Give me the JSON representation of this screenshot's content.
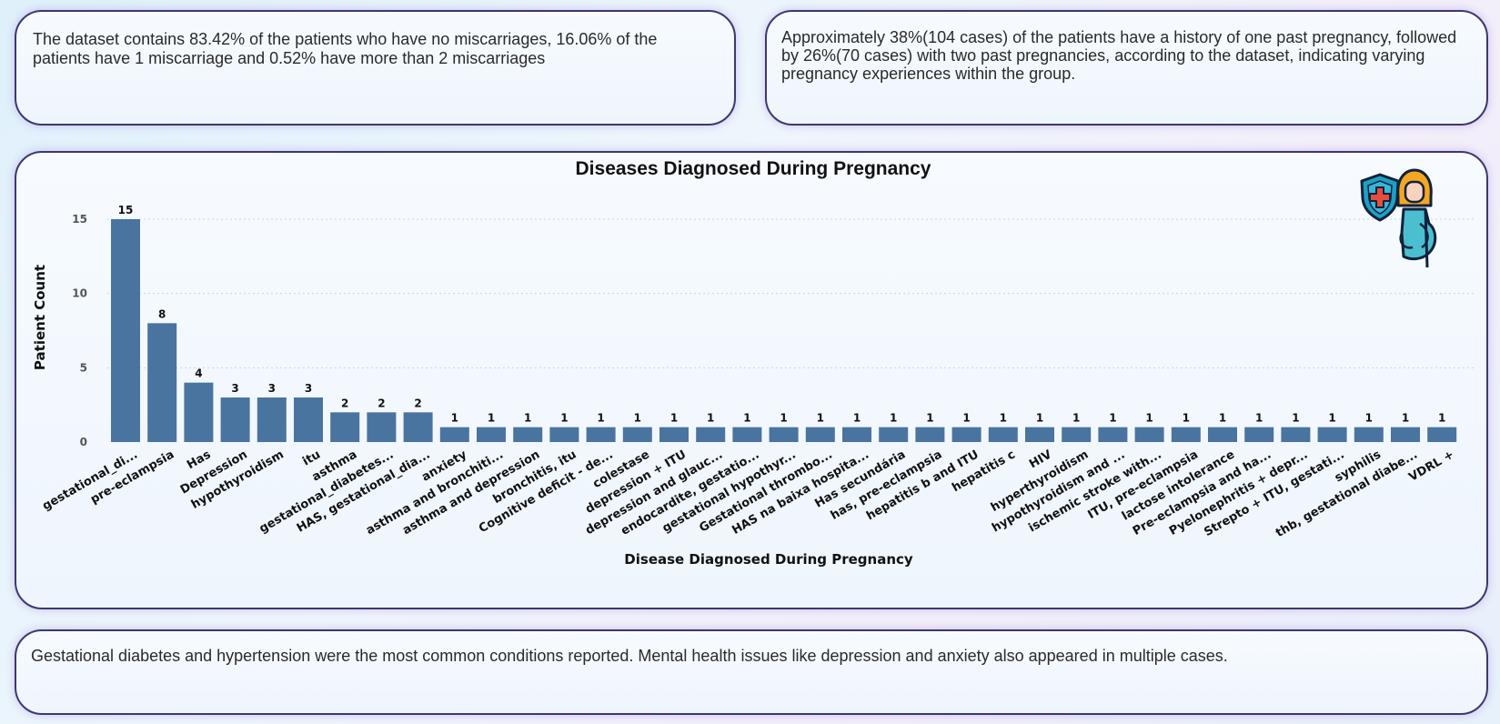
{
  "cards": {
    "miscarriage": "The dataset contains 83.42% of the patients who have no miscarriages, 16.06% of the patients have 1 miscarriage and 0.52% have more than 2 miscarriages",
    "pregnancies": "Approximately 38%(104 cases)  of the patients have a history of one past pregnancy, followed by 26%(70 cases) with two past pregnancies, according to the dataset, indicating varying pregnancy experiences within the group.",
    "conditions": "Gestational diabetes and hypertension were the most common conditions reported. Mental health issues like depression and anxiety also appeared in multiple cases."
  },
  "icons": [
    "shield-cross-icon",
    "pregnant-woman-icon"
  ],
  "colors": {
    "bar": "#4a74a0",
    "card_border": "#3d3770"
  },
  "chart_data": {
    "type": "bar",
    "title": "Diseases Diagnosed During Pregnancy",
    "xlabel": "Disease Diagnosed During Pregnancy",
    "ylabel": "Patient Count",
    "ylim": [
      0,
      15
    ],
    "yticks": [
      0,
      5,
      10,
      15
    ],
    "grid": true,
    "categories": [
      "gestational_di...",
      "pre-eclampsia",
      "Has",
      "Depression",
      "hypothyroidism",
      "itu",
      "asthma",
      "gestational_diabetes...",
      "HAS, gestational_dia...",
      "anxiety",
      "asthma and bronchiti...",
      "asthma and depression",
      "bronchitis, itu",
      "Cognitive deficit - de...",
      "colestase",
      "depression + ITU",
      "depression and glauc...",
      "endocardite, gestatio...",
      "gestational hypothyr...",
      "Gestational thrombo...",
      "HAS na baixa hospita...",
      "Has secundária",
      "has, pre-eclampsia",
      "hepatitis b and ITU",
      "hepatitis c",
      "HIV",
      "hyperthyroidism",
      "hypothyroidism and ...",
      "ischemic stroke with...",
      "ITU, pre-eclampsia",
      "lactose intolerance",
      "Pre-eclampsia and ha...",
      "Pyelonephritis + depr...",
      "Strepto + ITU, gestati...",
      "syphilis",
      "thb, gestational diabe...",
      "VDRL +"
    ],
    "values": [
      15,
      8,
      4,
      3,
      3,
      3,
      2,
      2,
      2,
      1,
      1,
      1,
      1,
      1,
      1,
      1,
      1,
      1,
      1,
      1,
      1,
      1,
      1,
      1,
      1,
      1,
      1,
      1,
      1,
      1,
      1,
      1,
      1,
      1,
      1,
      1,
      1
    ]
  }
}
